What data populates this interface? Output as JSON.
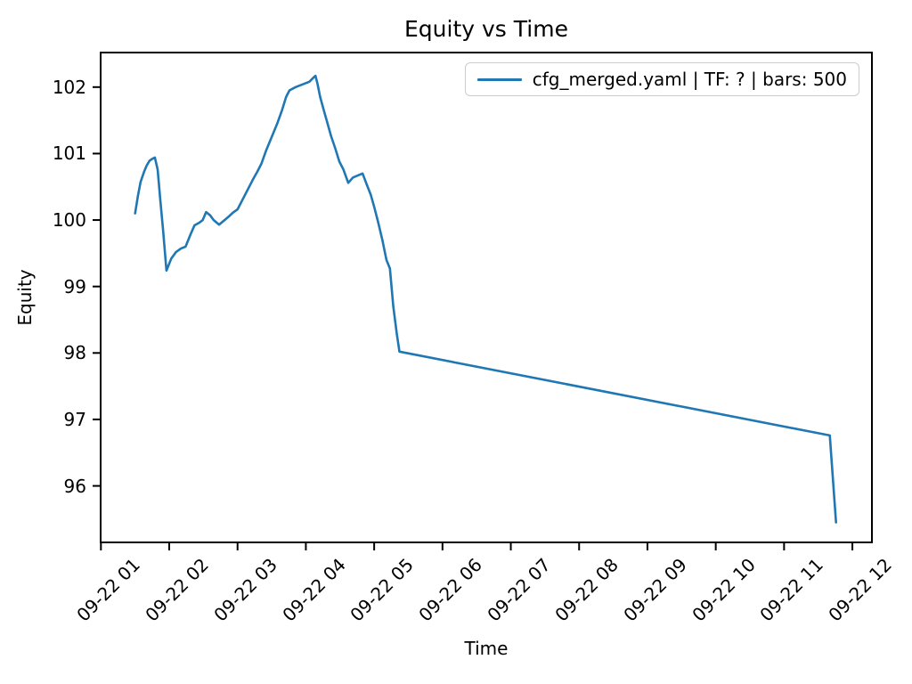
{
  "chart_data": {
    "type": "line",
    "title": "Equity vs Time",
    "xlabel": "Time",
    "ylabel": "Equity",
    "grid": false,
    "legend_position": "upper right",
    "xlim": [
      0.996,
      12.286
    ],
    "ylim": [
      95.15,
      102.52
    ],
    "x_ticks": [
      1,
      2,
      3,
      4,
      5,
      6,
      7,
      8,
      9,
      10,
      11,
      12
    ],
    "x_tick_labels": [
      "09-22 01",
      "09-22 02",
      "09-22 03",
      "09-22 04",
      "09-22 05",
      "09-22 06",
      "09-22 07",
      "09-22 08",
      "09-22 09",
      "09-22 10",
      "09-22 11",
      "09-22 12"
    ],
    "y_ticks": [
      96,
      97,
      98,
      99,
      100,
      101,
      102
    ],
    "series": [
      {
        "name": "cfg_merged.yaml | TF: ? | bars: 500",
        "color": "#1f77b4",
        "points": [
          [
            1.5,
            100.1
          ],
          [
            1.54,
            100.35
          ],
          [
            1.58,
            100.57
          ],
          [
            1.63,
            100.72
          ],
          [
            1.67,
            100.82
          ],
          [
            1.71,
            100.89
          ],
          [
            1.75,
            100.92
          ],
          [
            1.79,
            100.94
          ],
          [
            1.83,
            100.76
          ],
          [
            1.87,
            100.3
          ],
          [
            1.91,
            99.85
          ],
          [
            1.96,
            99.24
          ],
          [
            2.03,
            99.42
          ],
          [
            2.1,
            99.52
          ],
          [
            2.17,
            99.57
          ],
          [
            2.24,
            99.6
          ],
          [
            2.31,
            99.78
          ],
          [
            2.37,
            99.92
          ],
          [
            2.44,
            99.96
          ],
          [
            2.49,
            100.0
          ],
          [
            2.54,
            100.12
          ],
          [
            2.6,
            100.07
          ],
          [
            2.65,
            100.0
          ],
          [
            2.73,
            99.93
          ],
          [
            2.8,
            99.99
          ],
          [
            2.87,
            100.05
          ],
          [
            2.93,
            100.11
          ],
          [
            3.0,
            100.16
          ],
          [
            3.06,
            100.28
          ],
          [
            3.14,
            100.44
          ],
          [
            3.22,
            100.6
          ],
          [
            3.29,
            100.73
          ],
          [
            3.35,
            100.85
          ],
          [
            3.42,
            101.05
          ],
          [
            3.5,
            101.25
          ],
          [
            3.58,
            101.45
          ],
          [
            3.65,
            101.65
          ],
          [
            3.71,
            101.85
          ],
          [
            3.76,
            101.95
          ],
          [
            3.85,
            102.0
          ],
          [
            3.95,
            102.04
          ],
          [
            4.05,
            102.08
          ],
          [
            4.12,
            102.15
          ],
          [
            4.14,
            102.17
          ],
          [
            4.17,
            102.05
          ],
          [
            4.21,
            101.85
          ],
          [
            4.26,
            101.66
          ],
          [
            4.31,
            101.48
          ],
          [
            4.37,
            101.26
          ],
          [
            4.43,
            101.08
          ],
          [
            4.49,
            100.88
          ],
          [
            4.55,
            100.76
          ],
          [
            4.62,
            100.56
          ],
          [
            4.69,
            100.64
          ],
          [
            4.76,
            100.67
          ],
          [
            4.83,
            100.7
          ],
          [
            4.9,
            100.51
          ],
          [
            4.95,
            100.38
          ],
          [
            5.0,
            100.2
          ],
          [
            5.06,
            99.96
          ],
          [
            5.12,
            99.7
          ],
          [
            5.18,
            99.4
          ],
          [
            5.23,
            99.27
          ],
          [
            5.28,
            98.7
          ],
          [
            5.33,
            98.3
          ],
          [
            5.37,
            98.02
          ],
          [
            11.67,
            96.76
          ],
          [
            11.76,
            95.45
          ]
        ]
      }
    ]
  }
}
